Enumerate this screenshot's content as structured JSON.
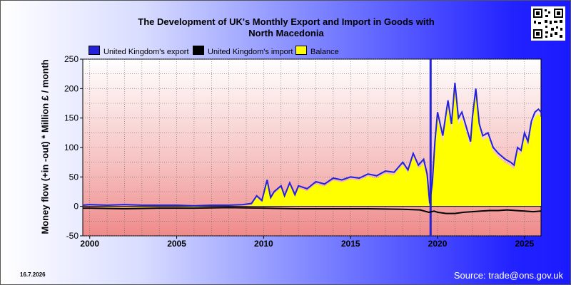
{
  "header": {
    "title_line1": "The Development of UK's Monthly Export and Import in Goods with",
    "title_line2": "North Macedonia"
  },
  "footer": {
    "date": "16.7.2026",
    "source": "Source: trade@ons.gov.uk"
  },
  "colors": {
    "export": "#2222dd",
    "import": "#000000",
    "balance": "#ffff00",
    "background_right": "#1a1aff"
  },
  "icons": {
    "qr": "qr-code-icon"
  },
  "chart_data": {
    "type": "area",
    "title": "The Development of UK's Monthly Export and Import in Goods with North Macedonia",
    "ylabel": "Money flow (+in -out) * Million £ / month",
    "xlabel": "",
    "xlim": [
      1999.6,
      2025.95
    ],
    "ylim": [
      -50,
      250
    ],
    "yticks": [
      -50,
      0,
      50,
      100,
      150,
      200,
      250
    ],
    "xticks": [
      2000,
      2005,
      2010,
      2015,
      2020,
      2025
    ],
    "grid": true,
    "legend_position": "top-left",
    "series": [
      {
        "name": "United Kingdom's export",
        "color": "#2222dd",
        "x": [
          1999.6,
          2000.0,
          2001.0,
          2002.0,
          2003.0,
          2004.0,
          2005.0,
          2006.0,
          2007.0,
          2008.0,
          2008.8,
          2009.3,
          2009.6,
          2009.9,
          2010.2,
          2010.4,
          2010.6,
          2011.0,
          2011.2,
          2011.5,
          2011.8,
          2012.0,
          2012.5,
          2013.0,
          2013.5,
          2014.0,
          2014.5,
          2015.0,
          2015.5,
          2016.0,
          2016.5,
          2017.0,
          2017.5,
          2018.0,
          2018.3,
          2018.6,
          2018.9,
          2019.2,
          2019.4,
          2019.55,
          2019.7,
          2019.85,
          2020.0,
          2020.3,
          2020.6,
          2020.8,
          2021.0,
          2021.2,
          2021.4,
          2021.7,
          2021.9,
          2022.0,
          2022.2,
          2022.4,
          2022.6,
          2022.9,
          2023.2,
          2023.5,
          2023.9,
          2024.2,
          2024.4,
          2024.6,
          2024.8,
          2025.0,
          2025.2,
          2025.4,
          2025.6,
          2025.8,
          2025.95
        ],
        "y": [
          2,
          3,
          2,
          3,
          2,
          2,
          2,
          1,
          2,
          2,
          3,
          5,
          18,
          10,
          45,
          15,
          25,
          35,
          18,
          40,
          20,
          35,
          30,
          42,
          38,
          48,
          45,
          50,
          48,
          55,
          52,
          60,
          58,
          75,
          62,
          90,
          70,
          80,
          55,
          5,
          40,
          110,
          160,
          120,
          180,
          140,
          210,
          150,
          160,
          130,
          110,
          150,
          200,
          140,
          120,
          125,
          100,
          90,
          80,
          75,
          70,
          100,
          95,
          125,
          110,
          145,
          160,
          165,
          160
        ]
      },
      {
        "name": "United Kingdom's import",
        "color": "#000000",
        "x": [
          1999.6,
          2000.0,
          2002.0,
          2004.0,
          2006.0,
          2008.0,
          2010.0,
          2012.0,
          2014.0,
          2016.0,
          2018.0,
          2019.0,
          2019.5,
          2019.8,
          2020.0,
          2020.5,
          2021.0,
          2021.5,
          2022.0,
          2022.5,
          2023.0,
          2023.5,
          2024.0,
          2024.5,
          2025.0,
          2025.5,
          2025.95
        ],
        "y": [
          -3,
          -3,
          -4,
          -3,
          -3,
          -2,
          -3,
          -4,
          -4,
          -4,
          -5,
          -6,
          -10,
          -8,
          -10,
          -12,
          -12,
          -10,
          -9,
          -8,
          -7,
          -7,
          -6,
          -7,
          -8,
          -9,
          -8
        ]
      },
      {
        "name": "Balance",
        "color": "#ffff00",
        "note": ""
      }
    ]
  }
}
